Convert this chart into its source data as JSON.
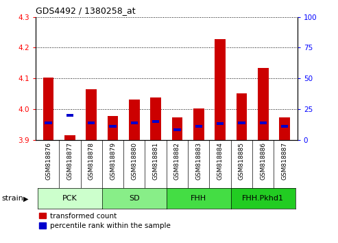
{
  "title": "GDS4492 / 1380258_at",
  "samples": [
    "GSM818876",
    "GSM818877",
    "GSM818878",
    "GSM818879",
    "GSM818880",
    "GSM818881",
    "GSM818882",
    "GSM818883",
    "GSM818884",
    "GSM818885",
    "GSM818886",
    "GSM818887"
  ],
  "red_values": [
    4.103,
    3.915,
    4.065,
    3.978,
    4.032,
    4.038,
    3.972,
    4.002,
    4.228,
    4.052,
    4.135,
    3.972
  ],
  "blue_values": [
    14,
    20,
    14,
    11,
    14,
    15,
    8,
    11,
    13,
    14,
    14,
    11
  ],
  "ylim_left": [
    3.9,
    4.3
  ],
  "ylim_right": [
    0,
    100
  ],
  "yticks_left": [
    3.9,
    4.0,
    4.1,
    4.2,
    4.3
  ],
  "yticks_right": [
    0,
    25,
    50,
    75,
    100
  ],
  "base_value": 3.9,
  "groups": [
    {
      "label": "PCK",
      "start": 0,
      "end": 2,
      "color": "#ccffcc"
    },
    {
      "label": "SD",
      "start": 3,
      "end": 5,
      "color": "#88ee88"
    },
    {
      "label": "FHH",
      "start": 6,
      "end": 8,
      "color": "#44dd44"
    },
    {
      "label": "FHH.Pkhd1",
      "start": 9,
      "end": 11,
      "color": "#22cc22"
    }
  ],
  "legend_red": "transformed count",
  "legend_blue": "percentile rank within the sample",
  "strain_label": "strain",
  "bar_width": 0.5,
  "red_color": "#cc0000",
  "blue_color": "#0000cc",
  "xtick_bg_color": "#d0d0d0"
}
